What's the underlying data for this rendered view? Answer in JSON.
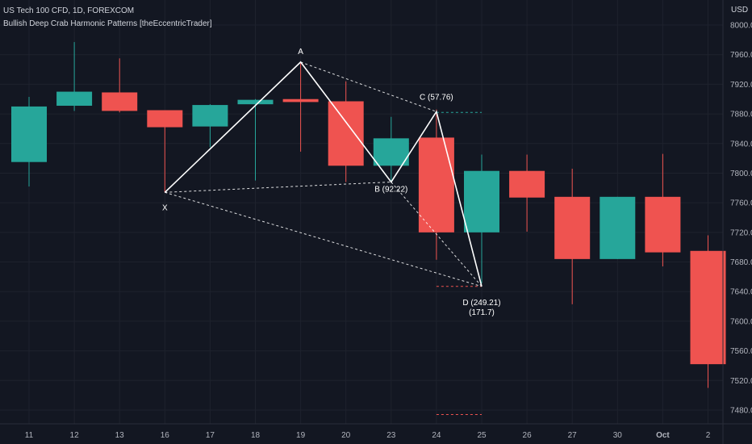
{
  "header": {
    "symbol_line": "US Tech 100 CFD, 1D, FOREXCOM",
    "indicator_line": "Bullish Deep Crab Harmonic Patterns [theEccentricTrader]"
  },
  "price_axis": {
    "currency": "USD"
  },
  "colors": {
    "background": "#131722",
    "grid": "#1e222d",
    "up": "#26a69a",
    "down": "#ef5350",
    "pattern": "#ffffff",
    "target_up": "#26a69a",
    "target_down": "#ef5350",
    "axis_text": "#b2b5be"
  },
  "chart_data": {
    "type": "candlestick",
    "x_labels": [
      "11",
      "12",
      "13",
      "16",
      "17",
      "18",
      "19",
      "20",
      "23",
      "24",
      "25",
      "26",
      "27",
      "30",
      "Oct",
      "2"
    ],
    "y_ticks": [
      "8000.0",
      "7960.0",
      "7920.0",
      "7880.0",
      "7840.0",
      "7800.0",
      "7760.0",
      "7720.0",
      "7680.0",
      "7640.0",
      "7600.0",
      "7560.0",
      "7520.0",
      "7480.0"
    ],
    "ylim": [
      7465,
      8020
    ],
    "candles": [
      {
        "date": "11",
        "open": 7815,
        "high": 7903,
        "low": 7782,
        "close": 7890
      },
      {
        "date": "12",
        "open": 7891,
        "high": 7977,
        "low": 7884,
        "close": 7910
      },
      {
        "date": "13",
        "open": 7909,
        "high": 7955,
        "low": 7882,
        "close": 7884
      },
      {
        "date": "16",
        "open": 7885,
        "high": 7885,
        "low": 7774,
        "close": 7862
      },
      {
        "date": "17",
        "open": 7863,
        "high": 7893,
        "low": 7835,
        "close": 7892
      },
      {
        "date": "18",
        "open": 7893,
        "high": 7900,
        "low": 7790,
        "close": 7899
      },
      {
        "date": "19",
        "open": 7900,
        "high": 7950,
        "low": 7829,
        "close": 7896
      },
      {
        "date": "20",
        "open": 7897,
        "high": 7924,
        "low": 7788,
        "close": 7810
      },
      {
        "date": "23",
        "open": 7810,
        "high": 7876,
        "low": 7788,
        "close": 7847
      },
      {
        "date": "24",
        "open": 7848,
        "high": 7886,
        "low": 7683,
        "close": 7720
      },
      {
        "date": "25",
        "open": 7720,
        "high": 7825,
        "low": 7651,
        "close": 7803
      },
      {
        "date": "26",
        "open": 7803,
        "high": 7825,
        "low": 7721,
        "close": 7767
      },
      {
        "date": "27",
        "open": 7768,
        "high": 7806,
        "low": 7623,
        "close": 7684
      },
      {
        "date": "30",
        "open": 7684,
        "high": 7768,
        "low": 7684,
        "close": 7768
      },
      {
        "date": "Oct",
        "open": 7768,
        "high": 7826,
        "low": 7674,
        "close": 7693
      },
      {
        "date": "2",
        "open": 7695,
        "high": 7716,
        "low": 7510,
        "close": 7542
      }
    ],
    "pattern": {
      "name": "Bullish Deep Crab",
      "points": [
        {
          "label": "X",
          "date": "16",
          "price": 7774
        },
        {
          "label": "A",
          "date": "19",
          "price": 7950
        },
        {
          "label": "B (92.22)",
          "date": "23",
          "price": 7788
        },
        {
          "label": "C (57.76)",
          "date": "24",
          "price": 7883
        },
        {
          "label": "D (249.21)",
          "label2": "(171.7)",
          "date": "25",
          "price": 7647
        }
      ],
      "dashed_connectors": [
        [
          "X",
          "B"
        ],
        [
          "X",
          "D"
        ],
        [
          "A",
          "C"
        ],
        [
          "B",
          "D"
        ]
      ],
      "target_lines": [
        {
          "start_date": "24",
          "end_date": "25",
          "price": 7882,
          "kind": "up"
        },
        {
          "start_date": "24",
          "end_date": "25",
          "price": 7647,
          "kind": "down"
        },
        {
          "start_date": "24",
          "end_date": "25",
          "price": 7474,
          "kind": "down"
        }
      ]
    }
  }
}
